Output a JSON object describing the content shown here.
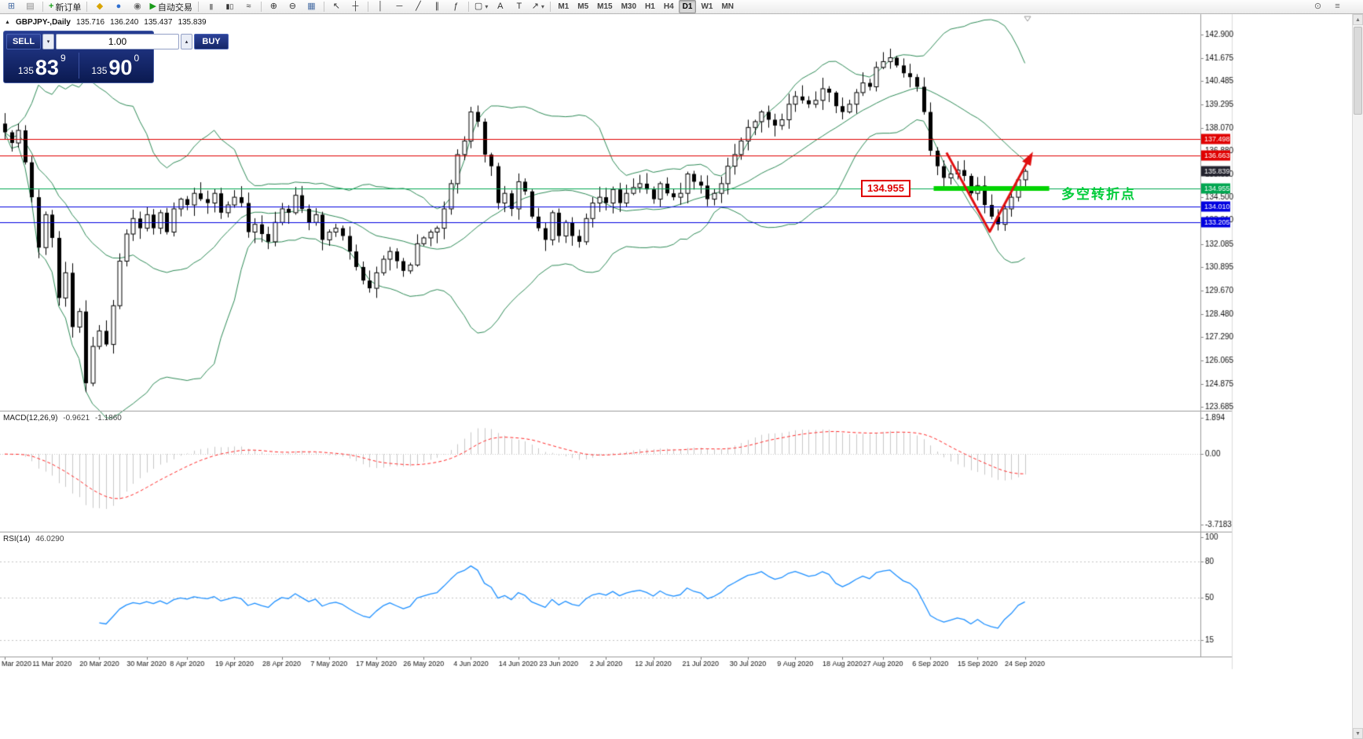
{
  "toolbar": {
    "new_chart_glyph": "⊞",
    "profiles_glyph": "▤",
    "new_order_glyph": "+",
    "new_order_label": "新订单",
    "favorites_glyph": "◆",
    "community_glyph": "●",
    "refresh_glyph": "◉",
    "autotrade_glyph": "▶",
    "autotrade_label": "自动交易",
    "bars_glyph": "|||",
    "candles_glyph": "▮▯",
    "line_glyph": "≈",
    "zoom_in_glyph": "⊕",
    "zoom_out_glyph": "⊖",
    "tile_glyph": "▦",
    "cursor_glyph": "↖",
    "crosshair_glyph": "┼",
    "vline_glyph": "│",
    "hline_glyph": "─",
    "trendline_glyph": "╱",
    "channel_glyph": "∥",
    "fibo_glyph": "ƒ",
    "shapes_glyph": "▢",
    "text_glyph": "A",
    "label_glyph": "T",
    "arrows_glyph": "↗",
    "caret_glyph": "▾",
    "timeframes": [
      "M1",
      "M5",
      "M15",
      "M30",
      "H1",
      "H4",
      "D1",
      "W1",
      "MN"
    ],
    "active_timeframe": "D1",
    "search_glyph": "⊙",
    "panels_glyph": "≡"
  },
  "symbol_info": {
    "marker": "▲",
    "symbol": "GBPJPY-,Daily",
    "open": "135.716",
    "high": "136.240",
    "low": "135.437",
    "close": "135.839"
  },
  "trade_panel": {
    "sell_label": "SELL",
    "buy_label": "BUY",
    "volume": "1.00",
    "spin_down": "▾",
    "spin_up": "▴",
    "sell_price": {
      "prefix": "135",
      "big": "83",
      "sup": "9"
    },
    "buy_price": {
      "prefix": "135",
      "big": "90",
      "sup": "0"
    }
  },
  "annotations": {
    "price_callout": "134.955",
    "note_text": "多空转折点",
    "note_color": "#00cc3a"
  },
  "scrollbar": {
    "up_glyph": "▲",
    "down_glyph": "▼"
  },
  "chart_data": [
    {
      "type": "candlestick",
      "symbol": "GBPJPY-,Daily",
      "timeframe": "Daily",
      "ylim": [
        123.52,
        143.95
      ],
      "first_open": 138.3,
      "closes": [
        137.85,
        137.3,
        137.95,
        136.3,
        134.5,
        131.9,
        133.6,
        132.4,
        129.3,
        130.6,
        127.8,
        128.6,
        124.9,
        126.8,
        127.6,
        126.9,
        128.9,
        131.2,
        132.6,
        133.4,
        132.9,
        133.6,
        132.9,
        133.7,
        132.7,
        133.9,
        134.4,
        134.1,
        134.7,
        134.4,
        134.2,
        134.7,
        133.7,
        134.1,
        134.5,
        134.2,
        132.7,
        133.1,
        132.6,
        132.2,
        133.2,
        133.9,
        133.7,
        134.6,
        133.9,
        133.2,
        133.6,
        132.3,
        132.7,
        132.9,
        132.5,
        131.7,
        130.9,
        130.2,
        129.8,
        130.6,
        131.3,
        131.7,
        131.2,
        130.7,
        131.0,
        132.1,
        132.4,
        132.7,
        132.9,
        133.9,
        135.2,
        136.7,
        137.4,
        138.9,
        138.4,
        136.7,
        136.1,
        134.2,
        134.7,
        133.9,
        135.3,
        134.8,
        133.5,
        132.9,
        132.3,
        133.7,
        132.5,
        133.2,
        132.5,
        132.2,
        133.4,
        134.2,
        134.5,
        134.2,
        134.9,
        134.2,
        134.7,
        135.0,
        135.2,
        134.9,
        134.4,
        135.2,
        134.7,
        134.5,
        134.7,
        135.7,
        135.3,
        135.1,
        134.4,
        134.7,
        135.2,
        136.1,
        136.7,
        137.4,
        138.1,
        138.4,
        138.9,
        138.5,
        138.2,
        138.5,
        139.3,
        139.7,
        139.5,
        139.3,
        139.5,
        140.1,
        139.9,
        139.2,
        138.9,
        139.3,
        139.9,
        140.4,
        140.2,
        141.2,
        141.5,
        141.7,
        141.3,
        140.9,
        140.7,
        140.2,
        138.9,
        136.9,
        136.1,
        135.5,
        135.7,
        135.9,
        135.6,
        134.7,
        135.1,
        134.1,
        133.5,
        133.1,
        133.9,
        134.5,
        135.4,
        135.84
      ],
      "x_labels": [
        "Mar 2020",
        "11 Mar 2020",
        "20 Mar 2020",
        "30 Mar 2020",
        "8 Apr 2020",
        "19 Apr 2020",
        "28 Apr 2020",
        "7 May 2020",
        "17 May 2020",
        "26 May 2020",
        "4 Jun 2020",
        "14 Jun 2020",
        "23 Jun 2020",
        "2 Jul 2020",
        "12 Jul 2020",
        "21 Jul 2020",
        "30 Jul 2020",
        "9 Aug 2020",
        "18 Aug 2020",
        "27 Aug 2020",
        "6 Sep 2020",
        "15 Sep 2020",
        "24 Sep 2020"
      ],
      "y_ticks": [
        "142.900",
        "141.675",
        "140.485",
        "139.295",
        "138.070",
        "136.880",
        "135.690",
        "134.500",
        "133.310",
        "132.085",
        "130.895",
        "129.670",
        "128.480",
        "127.290",
        "126.065",
        "124.875",
        "123.685"
      ],
      "bollinger": {
        "period": 20,
        "deviation": 2,
        "color": "#2e8b57"
      },
      "hlines": [
        {
          "price": 137.498,
          "label": "137.498",
          "color": "#e00000"
        },
        {
          "price": 136.663,
          "label": "136.663",
          "color": "#e00000"
        },
        {
          "price": 134.955,
          "label": "134.955",
          "color": "#00a650"
        },
        {
          "price": 134.01,
          "label": "134.010",
          "color": "#0000e0"
        },
        {
          "price": 133.205,
          "label": "133.205",
          "color": "#0000e0"
        }
      ],
      "current_price": {
        "value": 135.839,
        "label": "135.839",
        "box_color": "#23232e"
      },
      "trend_segment": {
        "price": 134.955,
        "from_bar": 137.5,
        "to_bar": 154.6,
        "color": "#00d400",
        "width": 6
      },
      "v_shape": {
        "points": [
          [
            139.4,
            136.8
          ],
          [
            145.8,
            132.72
          ],
          [
            151.8,
            136.6
          ]
        ],
        "color": "#e01010"
      },
      "colors": {
        "bull": "#ffffff",
        "bear": "#000000",
        "wick": "#000000"
      }
    },
    {
      "type": "macd",
      "label": "MACD(12,26,9)",
      "value_main": "-0.9621",
      "value_signal": "-1.1860",
      "params": {
        "fast": 12,
        "slow": 26,
        "signal": 9
      },
      "y_ticks": [
        "1.894",
        "0.00",
        "-3.7183"
      ],
      "ylim": [
        -3.95,
        2.15
      ],
      "colors": {
        "histogram": "#c8c8c8",
        "signal": "#ff2a2a"
      }
    },
    {
      "type": "line",
      "indicator": "rsi",
      "label": "RSI(14)",
      "value": "46.0290",
      "period": 14,
      "y_ticks": [
        "100",
        "80",
        "50",
        "15"
      ],
      "levels": [
        80,
        50,
        15
      ],
      "ylim": [
        0,
        100
      ],
      "color": "#1e90ff"
    }
  ]
}
